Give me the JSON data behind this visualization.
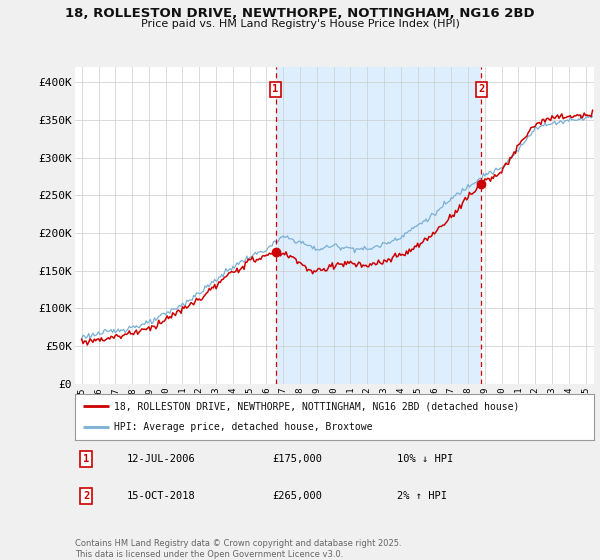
{
  "title_line1": "18, ROLLESTON DRIVE, NEWTHORPE, NOTTINGHAM, NG16 2BD",
  "title_line2": "Price paid vs. HM Land Registry's House Price Index (HPI)",
  "ylim": [
    0,
    420000
  ],
  "yticks": [
    0,
    50000,
    100000,
    150000,
    200000,
    250000,
    300000,
    350000,
    400000
  ],
  "ytick_labels": [
    "£0",
    "£50K",
    "£100K",
    "£150K",
    "£200K",
    "£250K",
    "£300K",
    "£350K",
    "£400K"
  ],
  "background_color": "#f0f0f0",
  "plot_bg_color": "#ffffff",
  "grid_color": "#cccccc",
  "red_color": "#cc0000",
  "blue_color": "#7ab0d4",
  "shade_color": "#ddeeff",
  "marker1_date": "12-JUL-2006",
  "marker1_price": 175000,
  "marker1_label": "10% ↓ HPI",
  "marker2_date": "15-OCT-2018",
  "marker2_price": 265000,
  "marker2_label": "2% ↑ HPI",
  "legend_label1": "18, ROLLESTON DRIVE, NEWTHORPE, NOTTINGHAM, NG16 2BD (detached house)",
  "legend_label2": "HPI: Average price, detached house, Broxtowe",
  "footnote": "Contains HM Land Registry data © Crown copyright and database right 2025.\nThis data is licensed under the Open Government Licence v3.0."
}
